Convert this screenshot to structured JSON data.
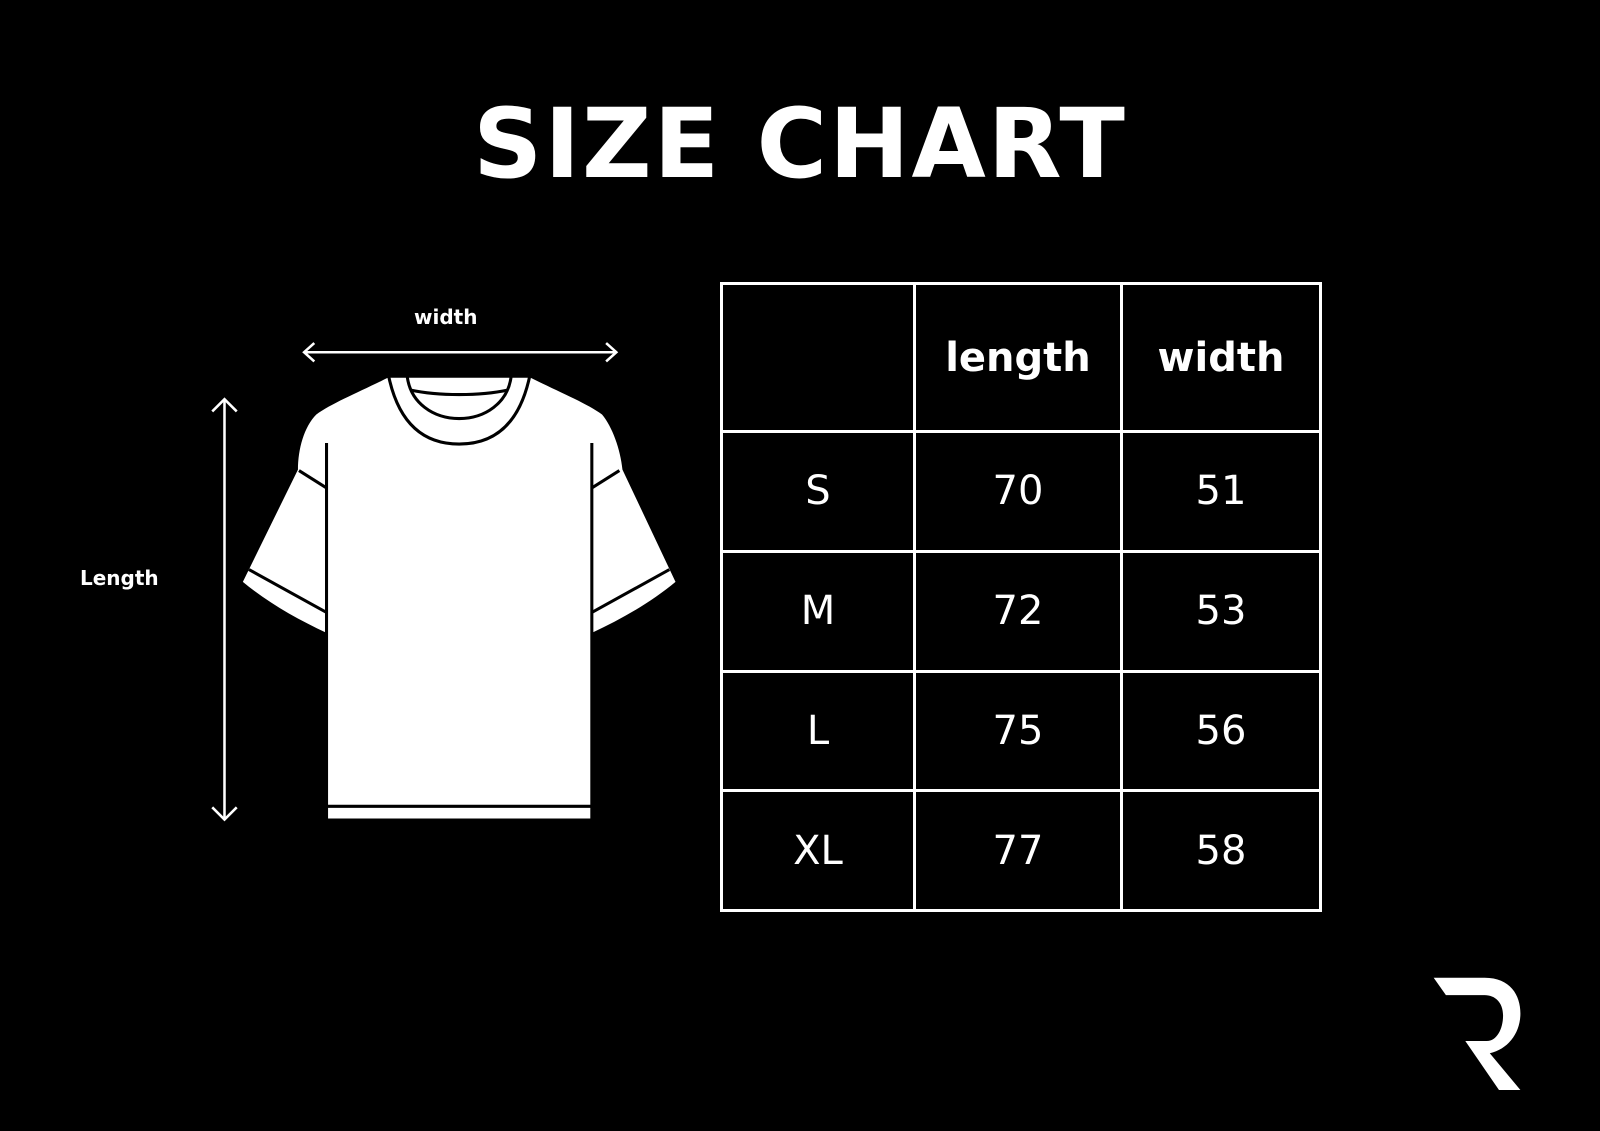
{
  "title": "SIZE CHART",
  "diagram": {
    "width_label": "width",
    "length_label": "Length"
  },
  "table": {
    "headers": [
      "",
      "length",
      "width"
    ],
    "rows": [
      {
        "size": "S",
        "length": "70",
        "width": "51"
      },
      {
        "size": "M",
        "length": "72",
        "width": "53"
      },
      {
        "size": "L",
        "length": "75",
        "width": "56"
      },
      {
        "size": "XL",
        "length": "77",
        "width": "58"
      }
    ]
  },
  "logo": {
    "letter": "R"
  },
  "colors": {
    "background": "#000000",
    "foreground": "#ffffff"
  }
}
